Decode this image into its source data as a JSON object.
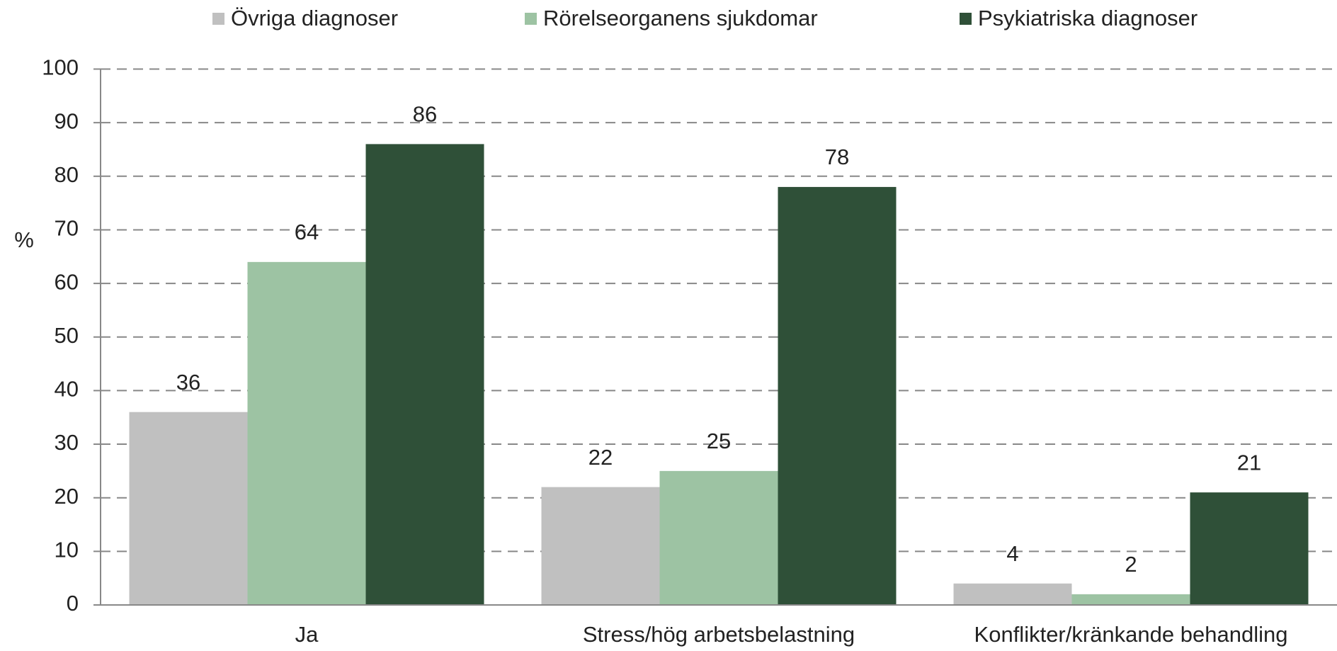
{
  "chart_data": {
    "type": "bar",
    "y_label": "%",
    "categories": [
      "Ja",
      "Stress/hög arbetsbelastning",
      "Konflikter/kränkande behandling"
    ],
    "series": [
      {
        "name": "Övriga diagnoser",
        "color": "#c0c0c0",
        "values": [
          36,
          22,
          4
        ]
      },
      {
        "name": "Rörelseorganens sjukdomar",
        "color": "#9dc3a3",
        "values": [
          64,
          25,
          2
        ]
      },
      {
        "name": "Psykiatriska diagnoser",
        "color": "#2f5038",
        "values": [
          86,
          78,
          21
        ]
      }
    ],
    "ylim": [
      0,
      100
    ],
    "yticks": [
      0,
      10,
      20,
      30,
      40,
      50,
      60,
      70,
      80,
      90,
      100
    ],
    "grid": true,
    "legend": "top"
  }
}
